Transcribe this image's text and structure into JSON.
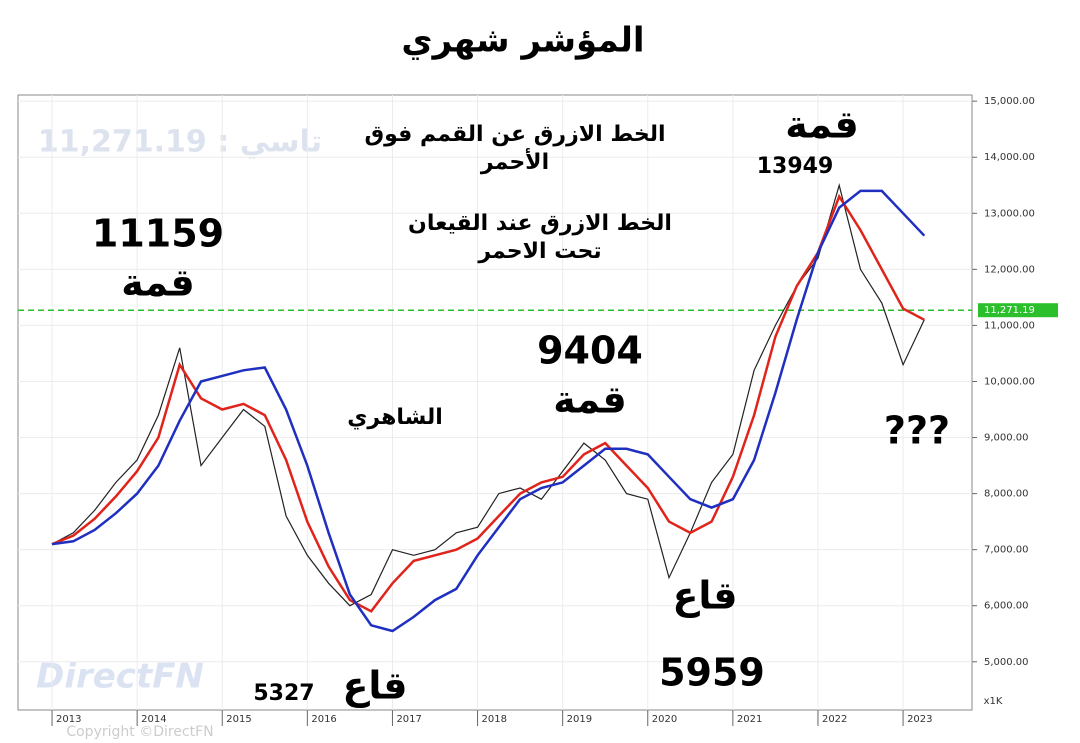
{
  "chart_data": {
    "type": "line",
    "title": "المؤشر شهري",
    "x": [
      2013.0,
      2013.25,
      2013.5,
      2013.75,
      2014.0,
      2014.25,
      2014.5,
      2014.75,
      2015.0,
      2015.25,
      2015.5,
      2015.75,
      2016.0,
      2016.25,
      2016.5,
      2016.75,
      2017.0,
      2017.25,
      2017.5,
      2017.75,
      2018.0,
      2018.25,
      2018.5,
      2018.75,
      2019.0,
      2019.25,
      2019.5,
      2019.75,
      2020.0,
      2020.25,
      2020.5,
      2020.75,
      2021.0,
      2021.25,
      2021.5,
      2021.75,
      2022.0,
      2022.25,
      2022.5,
      2022.75,
      2023.0,
      2023.25
    ],
    "series": [
      {
        "color": "#222222",
        "values": [
          7100,
          7300,
          7700,
          8200,
          8600,
          9400,
          10600,
          8500,
          9000,
          9500,
          9200,
          7600,
          6900,
          6400,
          6000,
          6200,
          7000,
          6900,
          7000,
          7300,
          7400,
          8000,
          8100,
          7900,
          8400,
          8900,
          8600,
          8000,
          7900,
          6500,
          7300,
          8200,
          8700,
          10200,
          11000,
          11700,
          12200,
          13500,
          12000,
          11400,
          10300,
          11100
        ]
      },
      {
        "color": "#e0241b",
        "values": [
          7100,
          7250,
          7550,
          7950,
          8400,
          9000,
          10300,
          9700,
          9500,
          9600,
          9400,
          8600,
          7500,
          6700,
          6100,
          5900,
          6400,
          6800,
          6900,
          7000,
          7200,
          7600,
          8000,
          8200,
          8300,
          8700,
          8900,
          8500,
          8100,
          7500,
          7300,
          7500,
          8300,
          9400,
          10800,
          11700,
          12300,
          13300,
          12700,
          12000,
          11300,
          11100
        ]
      },
      {
        "color": "#1f2fbf",
        "values": [
          7100,
          7150,
          7350,
          7650,
          8000,
          8500,
          9300,
          10000,
          10100,
          10200,
          10250,
          9500,
          8500,
          7300,
          6200,
          5650,
          5550,
          5800,
          6100,
          6300,
          6900,
          7400,
          7900,
          8100,
          8200,
          8500,
          8800,
          8800,
          8700,
          8300,
          7900,
          7750,
          7900,
          8600,
          9800,
          11100,
          12300,
          13100,
          13400,
          13400,
          13000,
          12600
        ]
      }
    ],
    "xlim": [
      2012.6,
      2023.81
    ],
    "xticks": [
      2013,
      2014,
      2015,
      2016,
      2017,
      2018,
      2019,
      2020,
      2021,
      2022,
      2023
    ],
    "ylim": [
      4140,
      15110
    ],
    "yticks": [
      {
        "value": 5000,
        "label": "5,000.00"
      },
      {
        "value": 6000,
        "label": "6,000.00"
      },
      {
        "value": 7000,
        "label": "7,000.00"
      },
      {
        "value": 8000,
        "label": "8,000.00"
      },
      {
        "value": 9000,
        "label": "9,000.00"
      },
      {
        "value": 10000,
        "label": "10,000.00"
      },
      {
        "value": 11000,
        "label": "11,000.00"
      },
      {
        "value": 12000,
        "label": "12,000.00"
      },
      {
        "value": 13000,
        "label": "13,000.00"
      },
      {
        "value": 14000,
        "label": "14,000.00"
      },
      {
        "value": 15000,
        "label": "15,000.00"
      }
    ],
    "grid": true,
    "ref_line": {
      "value": 11271.19,
      "label": "11,271.19",
      "color": "#2bbf2b"
    },
    "axis_unit": "x1K",
    "watermark": "تاسي : 11,271.19",
    "logo": "DirectFN",
    "copyright": "Copyright ©DirectFN",
    "annotations": [
      "الخط الازرق عن القمم فوق",
      "الأحمر",
      "الخط الازرق عند القيعان",
      "تحت الاحمر",
      "11159",
      "قمة",
      "الشاهري",
      "9404",
      "قمة",
      "قمة",
      "13949",
      "???",
      "قاع",
      "5959",
      "قاع",
      "5327"
    ]
  }
}
